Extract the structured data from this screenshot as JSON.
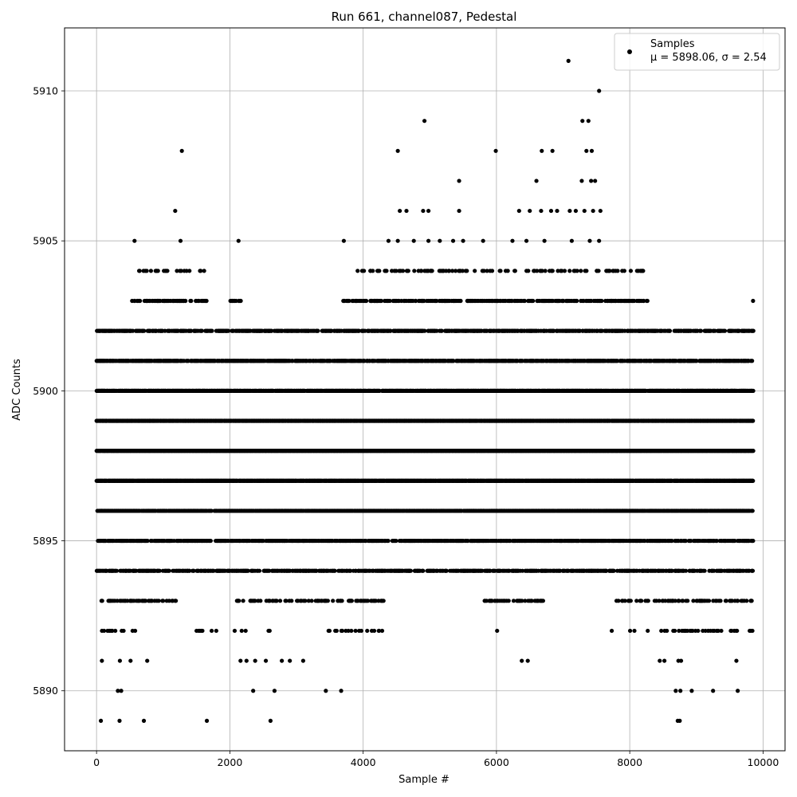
{
  "chart_data": {
    "type": "scatter",
    "title": "Run 661, channel087, Pedestal",
    "xlabel": "Sample #",
    "ylabel": "ADC Counts",
    "xlim": [
      -480,
      10330
    ],
    "ylim": [
      5888.0,
      5912.1
    ],
    "xticks": [
      0,
      2000,
      4000,
      6000,
      8000,
      10000
    ],
    "xtick_labels": [
      "0",
      "2000",
      "4000",
      "6000",
      "8000",
      "10000"
    ],
    "yticks": [
      5890,
      5895,
      5900,
      5905,
      5910
    ],
    "ytick_labels": [
      "5890",
      "5895",
      "5900",
      "5905",
      "5910"
    ],
    "grid": true,
    "legend": {
      "placement": "top-right",
      "series_label": "Samples",
      "stats_prefix": "μ = 5898.06, ",
      "stats_sigma": "σ = 2.54"
    },
    "marker_color": "#000000",
    "n_samples_approx": 9850,
    "bands": [
      {
        "y": 5898,
        "density": 1.0,
        "x_ranges": [
          [
            0,
            9850
          ]
        ]
      },
      {
        "y": 5897,
        "density": 0.95,
        "x_ranges": [
          [
            0,
            9850
          ]
        ]
      },
      {
        "y": 5899,
        "density": 0.95,
        "x_ranges": [
          [
            0,
            9850
          ]
        ]
      },
      {
        "y": 5896,
        "density": 0.85,
        "x_ranges": [
          [
            0,
            9850
          ]
        ]
      },
      {
        "y": 5900,
        "density": 0.85,
        "x_ranges": [
          [
            0,
            9850
          ]
        ]
      },
      {
        "y": 5895,
        "density": 0.65,
        "x_ranges": [
          [
            0,
            9850
          ]
        ]
      },
      {
        "y": 5901,
        "density": 0.65,
        "x_ranges": [
          [
            0,
            9850
          ]
        ]
      },
      {
        "y": 5894,
        "density": 0.55,
        "x_ranges": [
          [
            0,
            9850
          ]
        ]
      },
      {
        "y": 5902,
        "density": 0.55,
        "x_ranges": [
          [
            0,
            9850
          ]
        ]
      },
      {
        "y": 5893,
        "density": 0.3,
        "x_ranges": [
          [
            0,
            1200
          ],
          [
            2100,
            4300
          ],
          [
            5800,
            6700
          ],
          [
            7800,
            9850
          ]
        ]
      },
      {
        "y": 5903,
        "density": 0.4,
        "x_ranges": [
          [
            500,
            1650
          ],
          [
            2000,
            2200
          ],
          [
            3700,
            8300
          ],
          [
            9850,
            9850
          ]
        ]
      },
      {
        "y": 5892,
        "density": 0.15,
        "x_ranges": [
          [
            0,
            600
          ],
          [
            1500,
            2700
          ],
          [
            3450,
            4300
          ],
          [
            8000,
            9850
          ]
        ]
      },
      {
        "y": 5904,
        "density": 0.2,
        "x_ranges": [
          [
            550,
            1650
          ],
          [
            3900,
            8200
          ]
        ]
      }
    ],
    "outliers": [
      {
        "x": 7080,
        "y": 5911
      },
      {
        "x": 7540,
        "y": 5910
      },
      {
        "x": 4920,
        "y": 5909
      },
      {
        "x": 7290,
        "y": 5909
      },
      {
        "x": 7380,
        "y": 5909
      },
      {
        "x": 1280,
        "y": 5908
      },
      {
        "x": 4520,
        "y": 5908
      },
      {
        "x": 5990,
        "y": 5908
      },
      {
        "x": 6680,
        "y": 5908
      },
      {
        "x": 6840,
        "y": 5908
      },
      {
        "x": 7350,
        "y": 5908
      },
      {
        "x": 7430,
        "y": 5908
      },
      {
        "x": 5440,
        "y": 5907
      },
      {
        "x": 6600,
        "y": 5907
      },
      {
        "x": 7280,
        "y": 5907
      },
      {
        "x": 7420,
        "y": 5907
      },
      {
        "x": 7480,
        "y": 5907
      },
      {
        "x": 1180,
        "y": 5906
      },
      {
        "x": 4550,
        "y": 5906
      },
      {
        "x": 4650,
        "y": 5906
      },
      {
        "x": 4900,
        "y": 5906
      },
      {
        "x": 4980,
        "y": 5906
      },
      {
        "x": 5440,
        "y": 5906
      },
      {
        "x": 6340,
        "y": 5906
      },
      {
        "x": 6500,
        "y": 5906
      },
      {
        "x": 6670,
        "y": 5906
      },
      {
        "x": 6820,
        "y": 5906
      },
      {
        "x": 6910,
        "y": 5906
      },
      {
        "x": 7100,
        "y": 5906
      },
      {
        "x": 7190,
        "y": 5906
      },
      {
        "x": 7320,
        "y": 5906
      },
      {
        "x": 7450,
        "y": 5906
      },
      {
        "x": 7560,
        "y": 5906
      },
      {
        "x": 570,
        "y": 5905
      },
      {
        "x": 1260,
        "y": 5905
      },
      {
        "x": 2130,
        "y": 5905
      },
      {
        "x": 3710,
        "y": 5905
      },
      {
        "x": 4380,
        "y": 5905
      },
      {
        "x": 4520,
        "y": 5905
      },
      {
        "x": 4760,
        "y": 5905
      },
      {
        "x": 4980,
        "y": 5905
      },
      {
        "x": 5150,
        "y": 5905
      },
      {
        "x": 5350,
        "y": 5905
      },
      {
        "x": 5500,
        "y": 5905
      },
      {
        "x": 5800,
        "y": 5905
      },
      {
        "x": 6240,
        "y": 5905
      },
      {
        "x": 6450,
        "y": 5905
      },
      {
        "x": 6720,
        "y": 5905
      },
      {
        "x": 7130,
        "y": 5905
      },
      {
        "x": 7400,
        "y": 5905
      },
      {
        "x": 7540,
        "y": 5905
      },
      {
        "x": 65,
        "y": 5889
      },
      {
        "x": 345,
        "y": 5889
      },
      {
        "x": 710,
        "y": 5889
      },
      {
        "x": 1655,
        "y": 5889
      },
      {
        "x": 2610,
        "y": 5889
      },
      {
        "x": 8720,
        "y": 5889
      },
      {
        "x": 8750,
        "y": 5889
      },
      {
        "x": 320,
        "y": 5890
      },
      {
        "x": 370,
        "y": 5890
      },
      {
        "x": 2350,
        "y": 5890
      },
      {
        "x": 2670,
        "y": 5890
      },
      {
        "x": 3440,
        "y": 5890
      },
      {
        "x": 3670,
        "y": 5890
      },
      {
        "x": 8690,
        "y": 5890
      },
      {
        "x": 8760,
        "y": 5890
      },
      {
        "x": 8930,
        "y": 5890
      },
      {
        "x": 9250,
        "y": 5890
      },
      {
        "x": 9620,
        "y": 5890
      },
      {
        "x": 80,
        "y": 5891
      },
      {
        "x": 350,
        "y": 5891
      },
      {
        "x": 510,
        "y": 5891
      },
      {
        "x": 760,
        "y": 5891
      },
      {
        "x": 2160,
        "y": 5891
      },
      {
        "x": 2250,
        "y": 5891
      },
      {
        "x": 2380,
        "y": 5891
      },
      {
        "x": 2540,
        "y": 5891
      },
      {
        "x": 2780,
        "y": 5891
      },
      {
        "x": 2900,
        "y": 5891
      },
      {
        "x": 3100,
        "y": 5891
      },
      {
        "x": 6380,
        "y": 5891
      },
      {
        "x": 6470,
        "y": 5891
      },
      {
        "x": 8450,
        "y": 5891
      },
      {
        "x": 8520,
        "y": 5891
      },
      {
        "x": 8730,
        "y": 5891
      },
      {
        "x": 8770,
        "y": 5891
      },
      {
        "x": 9600,
        "y": 5891
      },
      {
        "x": 6010,
        "y": 5892
      },
      {
        "x": 7730,
        "y": 5892
      },
      {
        "x": 8070,
        "y": 5892
      },
      {
        "x": 8270,
        "y": 5892
      }
    ]
  }
}
